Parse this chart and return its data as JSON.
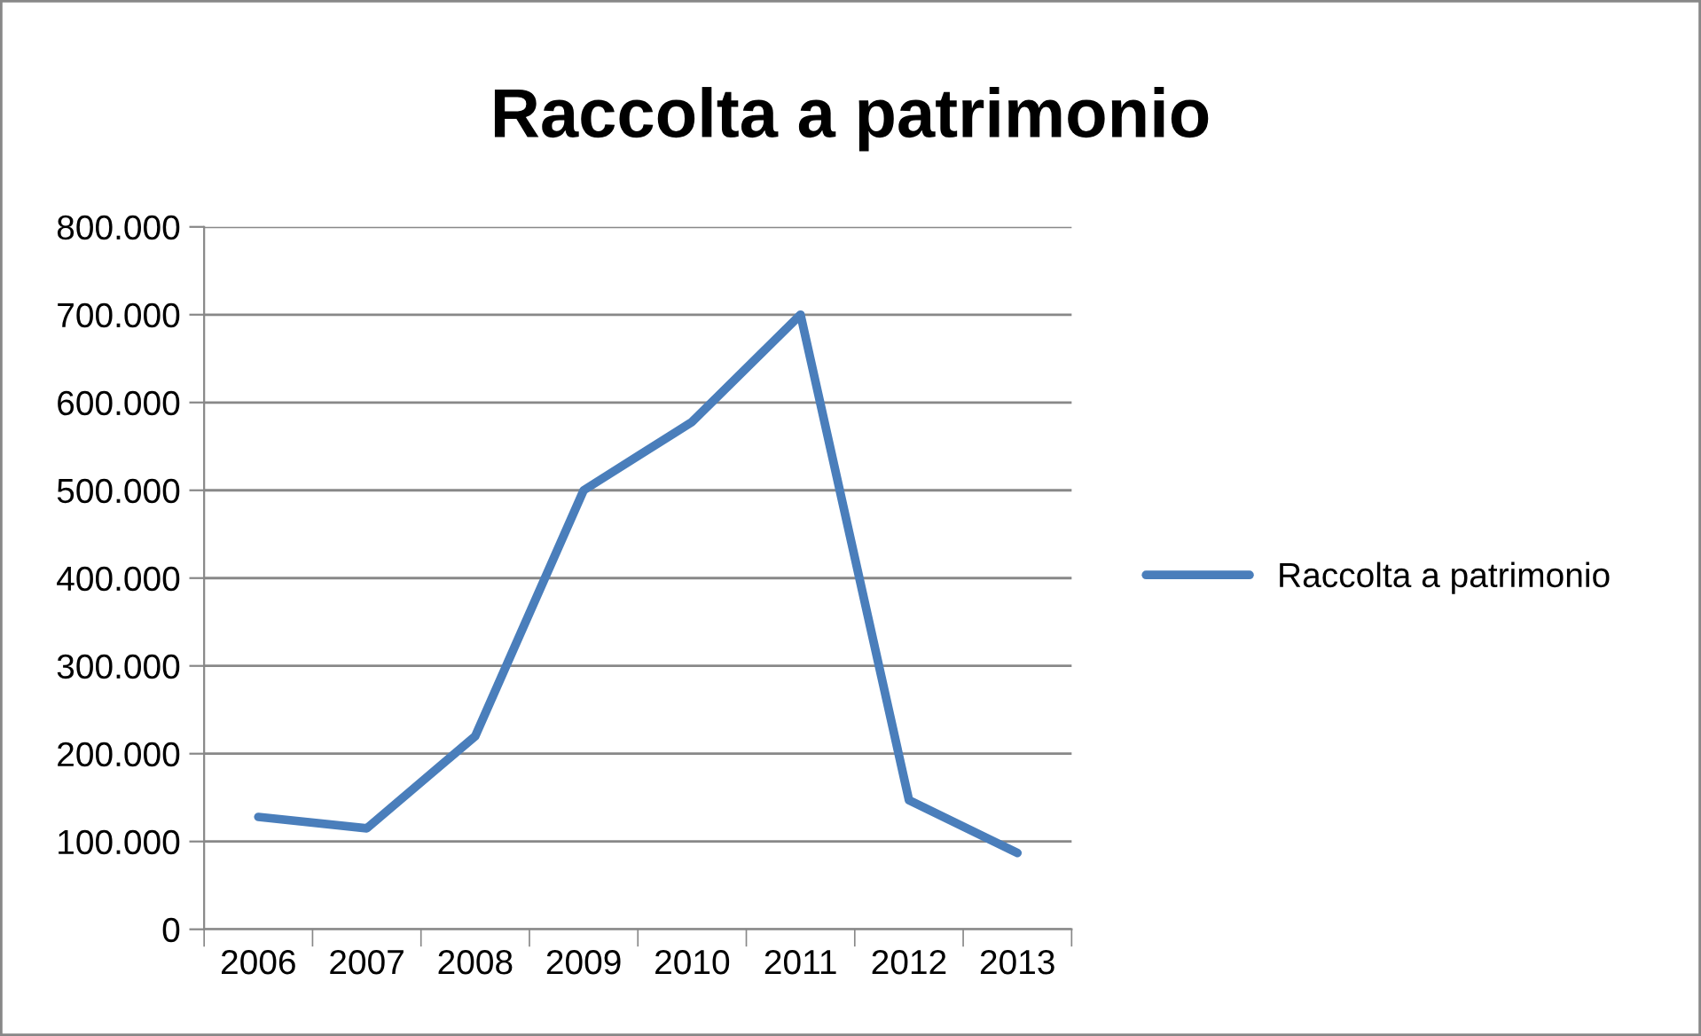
{
  "chart_data": {
    "type": "line",
    "title": "Raccolta a patrimonio",
    "categories": [
      "2006",
      "2007",
      "2008",
      "2009",
      "2010",
      "2011",
      "2012",
      "2013"
    ],
    "series": [
      {
        "name": "Raccolta a patrimonio",
        "color": "#4a7ebb",
        "values": [
          128000,
          115000,
          220000,
          500000,
          578000,
          700000,
          147000,
          87000
        ]
      }
    ],
    "ylim": [
      0,
      800000
    ],
    "yticks": [
      0,
      {
        "value": 100000,
        "label": "100.000"
      },
      {
        "value": 200000,
        "label": "200.000"
      },
      {
        "value": 300000,
        "label": "300.000"
      },
      {
        "value": 400000,
        "label": "400.000"
      },
      {
        "value": 500000,
        "label": "500.000"
      },
      {
        "value": 600000,
        "label": "600.000"
      },
      {
        "value": 700000,
        "label": "700.000"
      },
      {
        "value": 800000,
        "label": "800.000"
      }
    ],
    "grid": "y",
    "legend": "right",
    "marker": "none",
    "line_style": "solid"
  }
}
